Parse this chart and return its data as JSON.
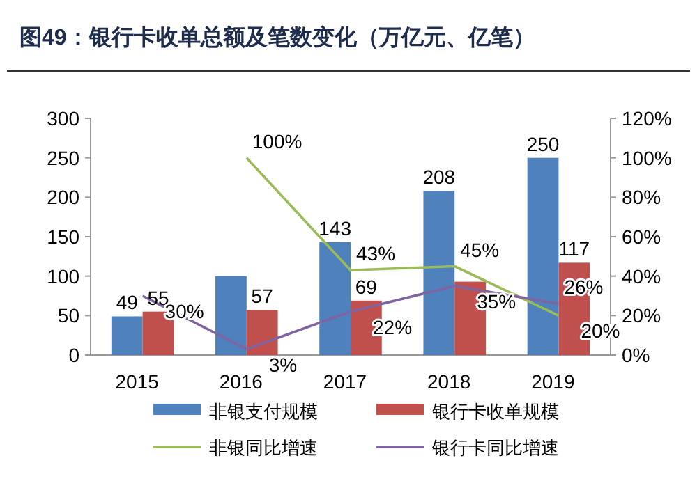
{
  "chart_data": {
    "type": "bar",
    "title": "图49：银行卡收单总额及笔数变化（万亿元、亿笔）",
    "categories": [
      "2015",
      "2016",
      "2017",
      "2018",
      "2019"
    ],
    "series": [
      {
        "name": "非银支付规模",
        "color": "#4f81bd",
        "values": [
          49,
          100,
          143,
          208,
          250
        ],
        "value_labels": [
          "49",
          null,
          "143",
          "208",
          "250"
        ]
      },
      {
        "name": "银行卡收单规模",
        "color": "#c0504d",
        "values": [
          55,
          57,
          69,
          93,
          117
        ],
        "value_labels": [
          "55",
          "57",
          "69",
          null,
          "117"
        ]
      },
      {
        "name": "非银同比增速",
        "type": "line",
        "axis": "y2",
        "color": "#9bbb59",
        "values": [
          null,
          100,
          43,
          45,
          20
        ],
        "value_labels": [
          null,
          "100%",
          "43%",
          "45%",
          "20%"
        ]
      },
      {
        "name": "银行卡同比增速",
        "type": "line",
        "axis": "y2",
        "color": "#8064a2",
        "values": [
          30,
          3,
          22,
          35,
          26
        ],
        "value_labels": [
          "30%",
          "3%",
          "22%",
          "35%",
          "26%"
        ]
      }
    ],
    "ylim": [
      0,
      300
    ],
    "yticks": [
      0,
      50,
      100,
      150,
      200,
      250,
      300
    ],
    "y2lim": [
      0,
      120
    ],
    "y2ticks": [
      {
        "value": 0,
        "label": "0%"
      },
      {
        "value": 20,
        "label": "20%"
      },
      {
        "value": 40,
        "label": "40%"
      },
      {
        "value": 60,
        "label": "60%"
      },
      {
        "value": 80,
        "label": "80%"
      },
      {
        "value": 100,
        "label": "100%"
      },
      {
        "value": 120,
        "label": "120%"
      }
    ],
    "legend": "bottom",
    "grid": false,
    "marker": "none"
  }
}
